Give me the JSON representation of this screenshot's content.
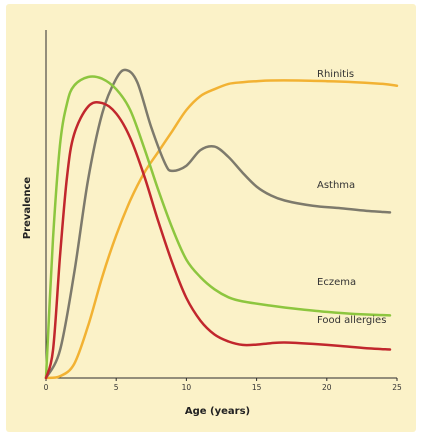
{
  "chart_data": {
    "type": "line",
    "title": "",
    "xlabel": "Age (years)",
    "ylabel": "Prevalence",
    "xlim": [
      0,
      25
    ],
    "ylim": [
      0,
      1
    ],
    "x_ticks": [
      0,
      5,
      10,
      15,
      20,
      25
    ],
    "grid": false,
    "legend": "labels at line ends (right)",
    "series": [
      {
        "name": "Rhinitis",
        "color": "#f2b233",
        "points": [
          [
            0,
            0
          ],
          [
            1,
            0.005
          ],
          [
            2,
            0.04
          ],
          [
            3,
            0.15
          ],
          [
            4,
            0.29
          ],
          [
            5,
            0.41
          ],
          [
            6,
            0.51
          ],
          [
            7,
            0.59
          ],
          [
            8,
            0.65
          ],
          [
            9,
            0.71
          ],
          [
            10,
            0.77
          ],
          [
            11,
            0.81
          ],
          [
            12,
            0.83
          ],
          [
            13,
            0.845
          ],
          [
            14,
            0.85
          ],
          [
            15,
            0.853
          ],
          [
            16,
            0.855
          ],
          [
            18,
            0.855
          ],
          [
            20,
            0.853
          ],
          [
            22,
            0.85
          ],
          [
            24,
            0.845
          ],
          [
            25,
            0.84
          ]
        ]
      },
      {
        "name": "Asthma",
        "color": "#7d7a6c",
        "points": [
          [
            0,
            0
          ],
          [
            1,
            0.08
          ],
          [
            2,
            0.3
          ],
          [
            3,
            0.57
          ],
          [
            4,
            0.76
          ],
          [
            5,
            0.86
          ],
          [
            5.7,
            0.885
          ],
          [
            6.5,
            0.85
          ],
          [
            7.5,
            0.72
          ],
          [
            8.5,
            0.615
          ],
          [
            9,
            0.595
          ],
          [
            10,
            0.61
          ],
          [
            11,
            0.655
          ],
          [
            12,
            0.665
          ],
          [
            13,
            0.635
          ],
          [
            14,
            0.59
          ],
          [
            15,
            0.55
          ],
          [
            16,
            0.525
          ],
          [
            17,
            0.51
          ],
          [
            19,
            0.495
          ],
          [
            21,
            0.488
          ],
          [
            23,
            0.48
          ],
          [
            24.5,
            0.476
          ]
        ]
      },
      {
        "name": "Eczema",
        "color": "#8dc63f",
        "points": [
          [
            0,
            0
          ],
          [
            0.5,
            0.4
          ],
          [
            1,
            0.67
          ],
          [
            1.5,
            0.79
          ],
          [
            2,
            0.84
          ],
          [
            3,
            0.865
          ],
          [
            4,
            0.86
          ],
          [
            5,
            0.83
          ],
          [
            6,
            0.77
          ],
          [
            7,
            0.66
          ],
          [
            8,
            0.54
          ],
          [
            9,
            0.43
          ],
          [
            10,
            0.34
          ],
          [
            11,
            0.29
          ],
          [
            12,
            0.255
          ],
          [
            13,
            0.232
          ],
          [
            14,
            0.22
          ],
          [
            16,
            0.208
          ],
          [
            18,
            0.198
          ],
          [
            20,
            0.19
          ],
          [
            22,
            0.184
          ],
          [
            24.5,
            0.18
          ]
        ]
      },
      {
        "name": "Food allergies",
        "color": "#c1272d",
        "points": [
          [
            0,
            0
          ],
          [
            0.5,
            0.08
          ],
          [
            1,
            0.35
          ],
          [
            1.5,
            0.58
          ],
          [
            2,
            0.7
          ],
          [
            3,
            0.78
          ],
          [
            4,
            0.79
          ],
          [
            5,
            0.76
          ],
          [
            6,
            0.69
          ],
          [
            7,
            0.58
          ],
          [
            8,
            0.45
          ],
          [
            9,
            0.33
          ],
          [
            10,
            0.23
          ],
          [
            11,
            0.165
          ],
          [
            12,
            0.125
          ],
          [
            13,
            0.105
          ],
          [
            14,
            0.095
          ],
          [
            15,
            0.096
          ],
          [
            16,
            0.1
          ],
          [
            17,
            0.102
          ],
          [
            19,
            0.098
          ],
          [
            21,
            0.092
          ],
          [
            23,
            0.085
          ],
          [
            24.5,
            0.082
          ]
        ]
      }
    ]
  }
}
